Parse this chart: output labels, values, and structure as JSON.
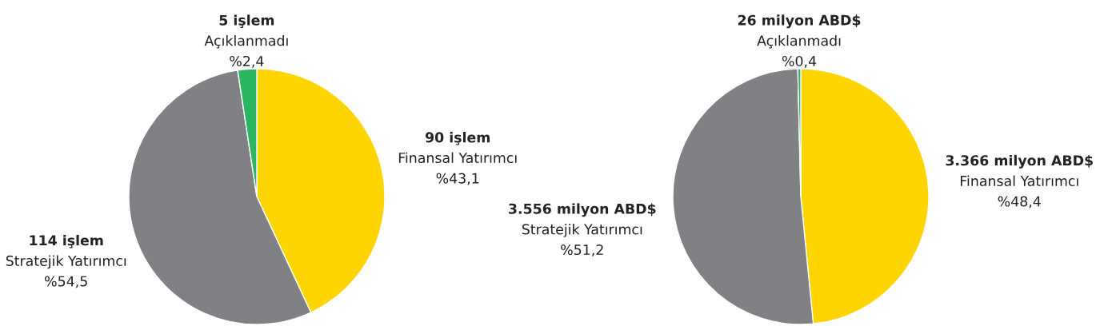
{
  "chart_data": [
    {
      "type": "pie",
      "categories": [
        "Finansal Yatırımcı",
        "Stratejik Yatırımcı",
        "Açıklanmadı"
      ],
      "values": [
        90,
        114,
        5
      ],
      "colors": [
        "#ffd500",
        "#808184",
        "#2db660"
      ],
      "value_labels": [
        "90 işlem",
        "114 işlem",
        "5 işlem"
      ],
      "annotations": [
        "%43,1",
        "%54,5",
        "%2,4"
      ]
    },
    {
      "type": "pie",
      "categories": [
        "Finansal Yatırımcı",
        "Stratejik Yatırımcı",
        "Açıklanmadı"
      ],
      "values": [
        3366,
        3556,
        26
      ],
      "colors": [
        "#ffd500",
        "#808184",
        "#2db660"
      ],
      "value_labels": [
        "3.366 milyon ABD$",
        "3.556 milyon ABD$",
        "26 milyon ABD$"
      ],
      "annotations": [
        "%48,4",
        "%51,2",
        "%0,4"
      ]
    }
  ]
}
